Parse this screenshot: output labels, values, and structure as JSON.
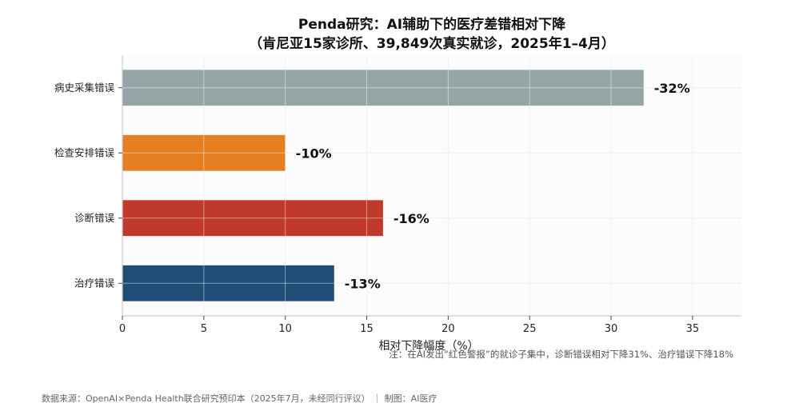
{
  "chart_data": {
    "type": "bar",
    "orientation": "horizontal",
    "title": "Penda研究：AI辅助下的医疗差错相对下降",
    "subtitle": "（肯尼亚15家诊所、39,849次真实就诊，2025年1–4月）",
    "xlabel": "相对下降幅度（%）",
    "ylabel": "",
    "xlim": [
      0,
      38
    ],
    "xticks": [
      0,
      5,
      10,
      15,
      20,
      25,
      30,
      35
    ],
    "grid": true,
    "categories": [
      "病史采集错误",
      "检查安排错误",
      "诊断错误",
      "治疗错误"
    ],
    "values": [
      32,
      10,
      16,
      13
    ],
    "value_labels": [
      "-32%",
      "-10%",
      "-16%",
      "-13%"
    ],
    "colors": [
      "#95a5a6",
      "#e67e22",
      "#c0392b",
      "#1f4e79"
    ]
  },
  "note": "注：在AI发出“红色警报”的就诊子集中，诊断错误相对下降31%、治疗错误下降18%",
  "footer": "数据来源：OpenAI×Penda Health联合研究预印本（2025年7月，未经同行评议）  ｜ 制图：AI医疗"
}
